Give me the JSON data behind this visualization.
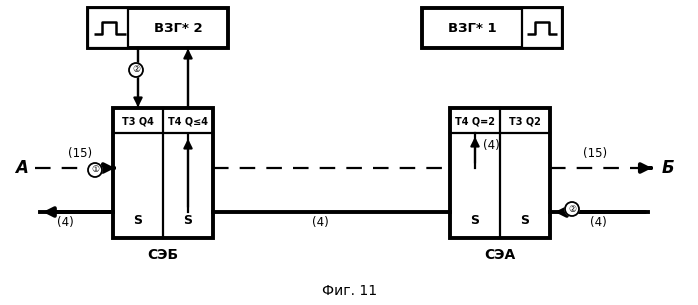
{
  "title": "Фиг. 11",
  "left_block_label": "СЭБ",
  "right_block_label": "СЭА",
  "vzg2_label": "ВЗГ* 2",
  "vzg1_label": "ВЗГ* 1",
  "t3q4_label": "Т3 Q4",
  "t4q4_label": "Т4 Q≤4",
  "t4q2_label": "Т4 Q=2",
  "t3q2_label": "Т3 Q2",
  "A_label": "А",
  "B_label": "Б",
  "background": "#ffffff"
}
